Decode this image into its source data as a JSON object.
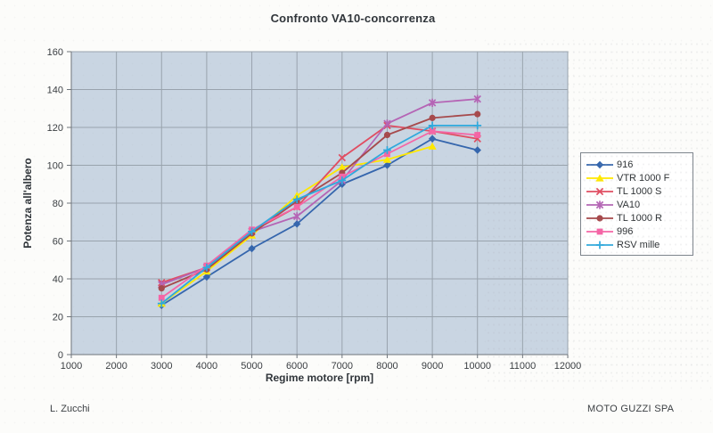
{
  "page": {
    "footer_left": "L. Zucchi",
    "footer_right": "MOTO GUZZI SPA"
  },
  "chart_data": {
    "type": "line",
    "title": "Confronto VA10-concorrenza",
    "xlabel": "Regime motore [rpm]",
    "ylabel": "Potenza all'albero",
    "xlim": [
      1000,
      12000
    ],
    "ylim": [
      0,
      160
    ],
    "xticks": [
      1000,
      2000,
      3000,
      4000,
      5000,
      6000,
      7000,
      8000,
      9000,
      10000,
      11000,
      12000
    ],
    "yticks": [
      0,
      20,
      40,
      60,
      80,
      100,
      120,
      140,
      160
    ],
    "grid": true,
    "legend_position": "right",
    "plot_bg_color": "#c9d5e2",
    "gridline_color": "#99a3ad",
    "axis_color": "#6e747b",
    "tick_label_color": "#3a3e42",
    "x": [
      3000,
      4000,
      5000,
      6000,
      7000,
      8000,
      9000,
      10000
    ],
    "series": [
      {
        "name": "916",
        "color": "#3566ad",
        "marker": "diamond",
        "values": [
          26,
          41,
          56,
          69,
          90,
          100,
          114,
          108
        ]
      },
      {
        "name": "VTR 1000 F",
        "color": "#ffe800",
        "marker": "triangle",
        "values": [
          27,
          44,
          63,
          84,
          99,
          103,
          110,
          null
        ]
      },
      {
        "name": "TL 1000 S",
        "color": "#e04e62",
        "marker": "x",
        "values": [
          38,
          46,
          65,
          78,
          104,
          121,
          118,
          114
        ]
      },
      {
        "name": "VA10",
        "color": "#b565b5",
        "marker": "star",
        "values": [
          37,
          46,
          65,
          73,
          92,
          122,
          133,
          135
        ]
      },
      {
        "name": "TL 1000 R",
        "color": "#a64a4c",
        "marker": "circle",
        "values": [
          35,
          45,
          64,
          81,
          96,
          116,
          125,
          127
        ]
      },
      {
        "name": "996",
        "color": "#f466a6",
        "marker": "square",
        "values": [
          30,
          47,
          66,
          78,
          94,
          106,
          118,
          116
        ]
      },
      {
        "name": "RSV mille",
        "color": "#2fa9dd",
        "marker": "plus",
        "values": [
          27,
          46,
          65,
          82,
          92,
          108,
          121,
          121
        ]
      }
    ]
  }
}
